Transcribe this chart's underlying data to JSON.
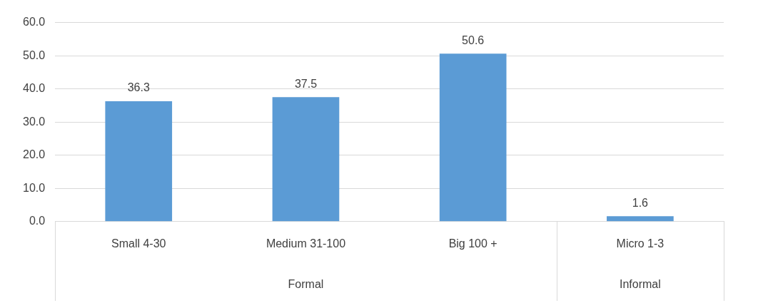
{
  "chart_data": {
    "type": "bar",
    "categories": [
      "Small 4-30",
      "Medium 31-100",
      "Big 100 +",
      "Micro 1-3"
    ],
    "values": [
      36.3,
      37.5,
      50.6,
      1.6
    ],
    "color": "#5b9bd5",
    "ylim": [
      0,
      60
    ],
    "yticks": [
      {
        "value": 0,
        "label": "0.0"
      },
      {
        "value": 10,
        "label": "10.0"
      },
      {
        "value": 20,
        "label": "20.0"
      },
      {
        "value": 30,
        "label": "30.0"
      },
      {
        "value": 40,
        "label": "40.0"
      },
      {
        "value": 50,
        "label": "50.0"
      },
      {
        "value": 60,
        "label": "60.0"
      }
    ],
    "grid": "y",
    "data_labels": true,
    "annotations": [
      "Formal",
      "Informal"
    ]
  }
}
